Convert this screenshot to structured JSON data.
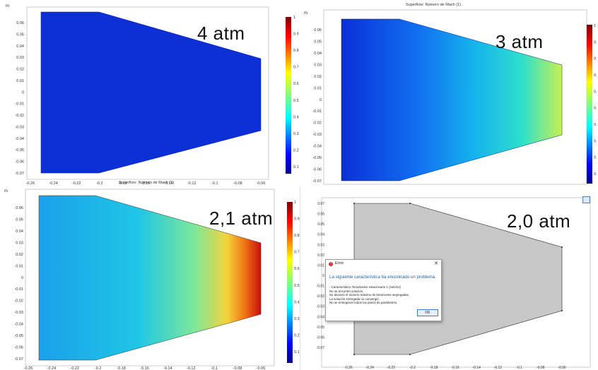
{
  "panels": {
    "p1": {
      "pressure": "4 atm",
      "caption": "Superficie: Número de Mach (1)",
      "unit": "m",
      "y_ticks": [
        "0.06",
        "0.05",
        "0.04",
        "0.03",
        "0.02",
        "0.01",
        "0",
        "-0.01",
        "-0.02",
        "-0.03",
        "-0.04",
        "-0.05",
        "-0.06",
        "-0.07"
      ],
      "x_ticks": [
        "-0.26",
        "-0.24",
        "-0.22",
        "-0.2",
        "-0.18",
        "-0.16",
        "-0.14",
        "-0.12",
        "-0.1",
        "-0.08",
        "-0.06"
      ],
      "colorbar_ticks": [
        "1",
        "0.9",
        "0.8",
        "0.7",
        "0.6",
        "0.5",
        "0.4",
        "0.3",
        "0.2",
        "0.1"
      ]
    },
    "p2": {
      "pressure": "3 atm",
      "caption": "Superficie: Número de Mach (1)",
      "unit": "m",
      "y_ticks": [
        "0.06",
        "0.05",
        "0.04",
        "0.03",
        "0.02",
        "0.01",
        "0",
        "-0.01",
        "-0.02",
        "-0.03",
        "-0.04",
        "-0.05",
        "-0.06",
        "-0.07"
      ],
      "x_ticks": [
        "-0.26",
        "-0.24",
        "-0.22",
        "-0.2",
        "-0.18",
        "-0.16",
        "-0.14",
        "-0.12",
        "-0.1",
        "-0.08",
        "-0.06"
      ],
      "colorbar_ticks": [
        "1",
        "0.",
        "0.",
        "0.",
        "0.",
        "0.",
        "0.",
        "0.",
        "0.",
        "0."
      ]
    },
    "p3": {
      "pressure": "2,1 atm",
      "unit": "m",
      "y_ticks": [
        "0.06",
        "0.05",
        "0.04",
        "0.03",
        "0.02",
        "0.01",
        "0",
        "-0.01",
        "-0.02",
        "-0.03",
        "-0.04",
        "-0.05",
        "-0.06",
        "-0.07"
      ],
      "x_ticks": [
        "-0.26",
        "-0.24",
        "-0.22",
        "-0.2",
        "-0.18",
        "-0.16",
        "-0.14",
        "-0.12",
        "-0.1",
        "-0.08",
        "-0.06"
      ],
      "colorbar_ticks": [
        "1",
        "0.9",
        "0.8",
        "0.7",
        "0.6",
        "0.5",
        "0.4",
        "0.3",
        "0.2",
        "0.1"
      ]
    },
    "p4": {
      "pressure": "2,0 atm",
      "y_ticks": [
        "0.07",
        "0.06",
        "0.05",
        "0.04",
        "0.03",
        "0.02",
        "0.01",
        "0",
        "-0.01",
        "-0.02",
        "-0.03",
        "-0.04",
        "-0.05",
        "-0.06",
        "-0.07"
      ],
      "x_ticks": [
        "-0.26",
        "-0.24",
        "-0.22",
        "-0.2",
        "-0.18",
        "-0.16",
        "-0.14",
        "-0.12",
        "-0.1",
        "-0.08",
        "-0.06"
      ]
    }
  },
  "dialog": {
    "title": "Error",
    "close": "✕",
    "heading": "La siguiente característica ha encontrado un problema.",
    "lines": [
      "- Característica: Resolvedor estacionario 1 (sol1/s1)",
      "No se encontró solución.",
      "Se alcanzó el número máximo de iteraciones segregadas.",
      "La solución entregada no convergió.",
      "No se entregaron todos los pasos de parámetros."
    ],
    "ok": "OK"
  },
  "colors": {
    "mach_low": "#0b2fd1",
    "mach_high": "#c40000",
    "mesh_fill": "#c8c8c8",
    "error_blue": "#1f5fa8"
  }
}
